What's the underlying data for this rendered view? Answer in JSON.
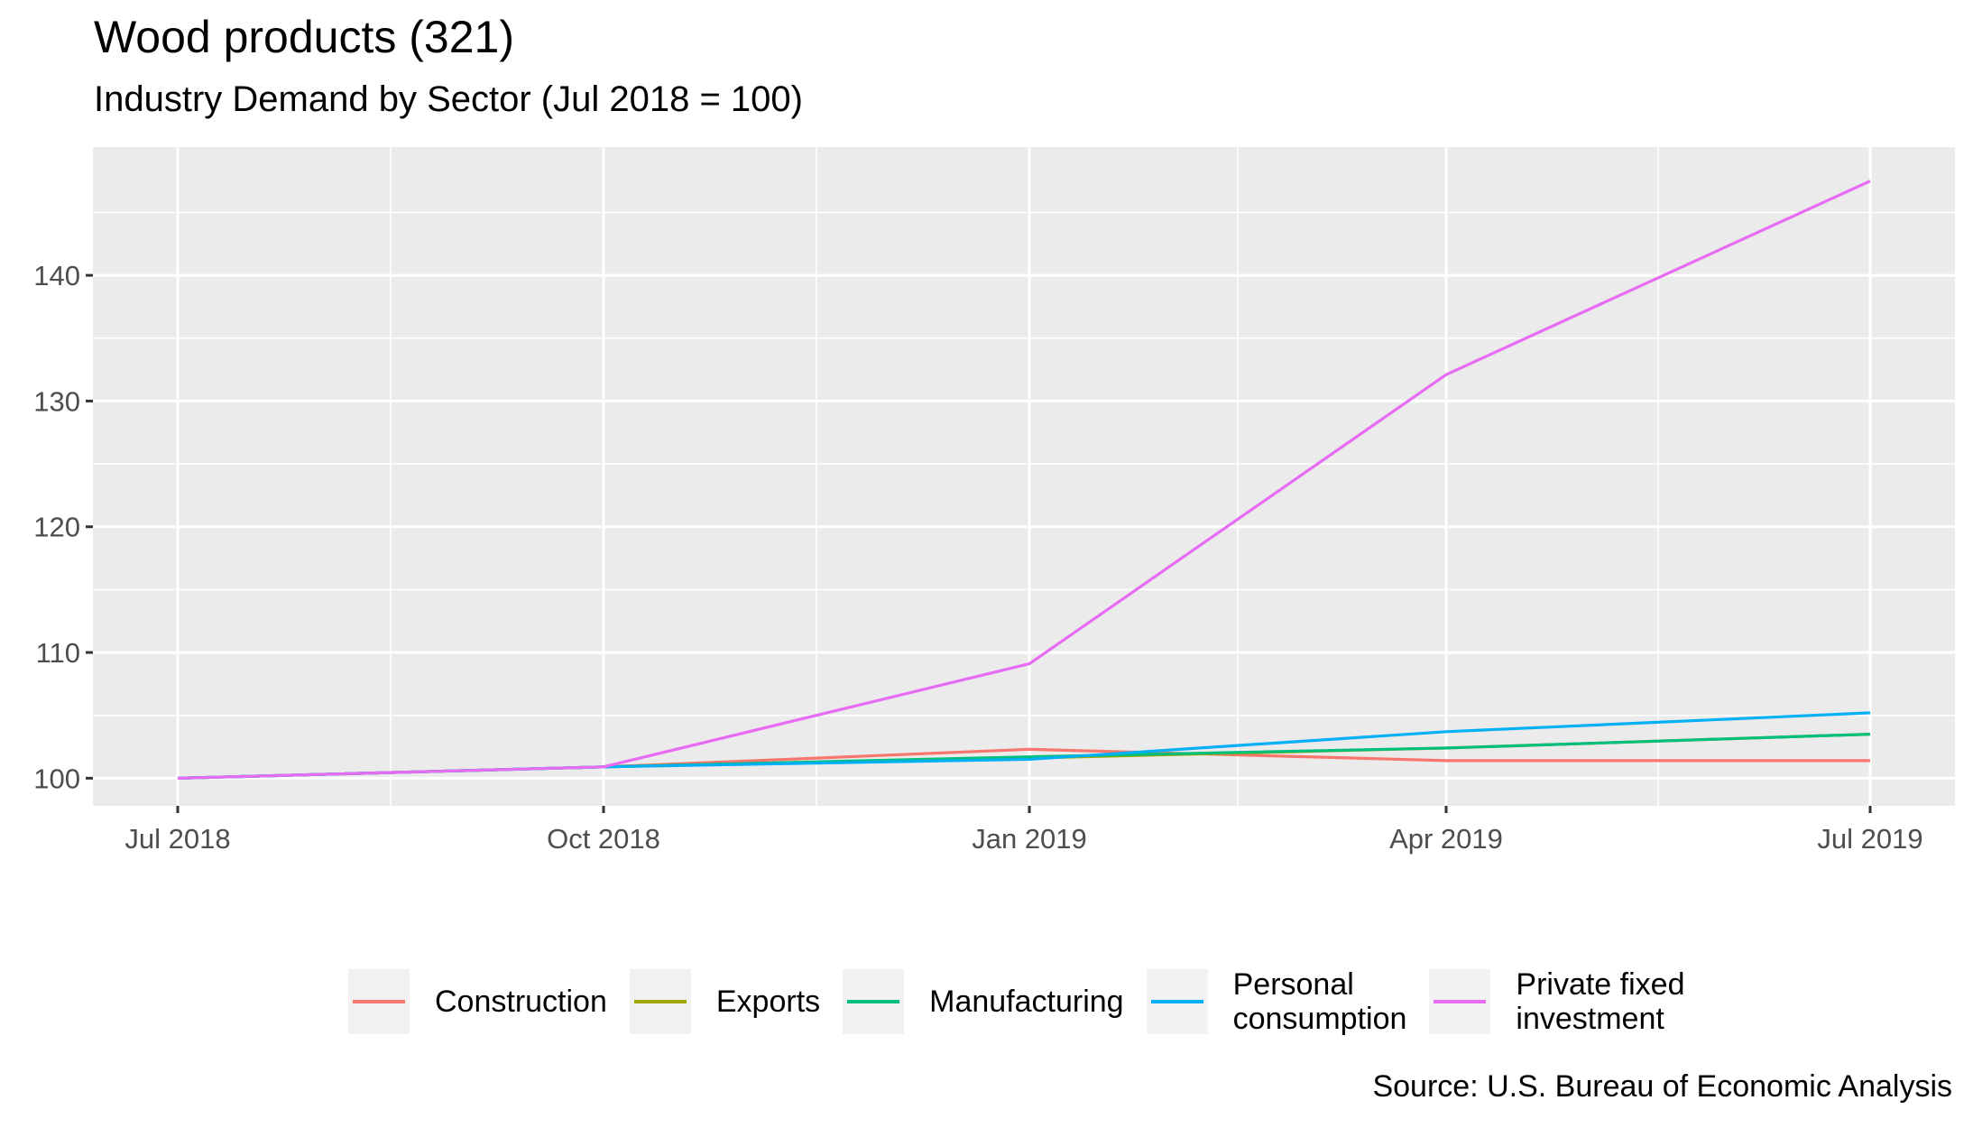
{
  "chart_data": {
    "type": "line",
    "title": "Wood products (321)",
    "subtitle": "Industry Demand by Sector (Jul 2018 = 100)",
    "caption": "Source: U.S. Bureau of Economic Analysis",
    "xlabel": "",
    "ylabel": "",
    "x": [
      "Jul 2018",
      "Oct 2018",
      "Jan 2019",
      "Apr 2019",
      "Jul 2019"
    ],
    "x_tick_labels": [
      "Jul 2018",
      "Oct 2018",
      "Jan 2019",
      "Apr 2019",
      "Jul 2019"
    ],
    "y_ticks": [
      100,
      110,
      120,
      130,
      140
    ],
    "y_tick_labels": [
      "100",
      "110",
      "120",
      "130",
      "140"
    ],
    "ylim": [
      97.8,
      150.2
    ],
    "grid": true,
    "legend_position": "bottom",
    "series": [
      {
        "name": "Construction",
        "color": "#F8766D",
        "values": [
          100,
          100.9,
          102.3,
          101.4,
          101.4
        ]
      },
      {
        "name": "Exports",
        "color": "#A3A500",
        "values": [
          100,
          100.9,
          101.6,
          102.4,
          103.5
        ]
      },
      {
        "name": "Manufacturing",
        "color": "#00BF7D",
        "values": [
          100,
          100.9,
          101.7,
          102.4,
          103.5
        ]
      },
      {
        "name": "Personal consumption",
        "color": "#00B0F6",
        "values": [
          100,
          100.9,
          101.5,
          103.7,
          105.2
        ]
      },
      {
        "name": "Private fixed investment",
        "color": "#E76BF3",
        "values": [
          100,
          100.9,
          109.1,
          132.1,
          147.5
        ]
      }
    ]
  },
  "legend": {
    "items": [
      {
        "label": "Construction",
        "color": "#F8766D"
      },
      {
        "label": "Exports",
        "color": "#A3A500"
      },
      {
        "label": "Manufacturing",
        "color": "#00BF7D"
      },
      {
        "label": "Personal\nconsumption",
        "color": "#00B0F6"
      },
      {
        "label": "Private fixed\ninvestment",
        "color": "#E76BF3"
      }
    ]
  }
}
